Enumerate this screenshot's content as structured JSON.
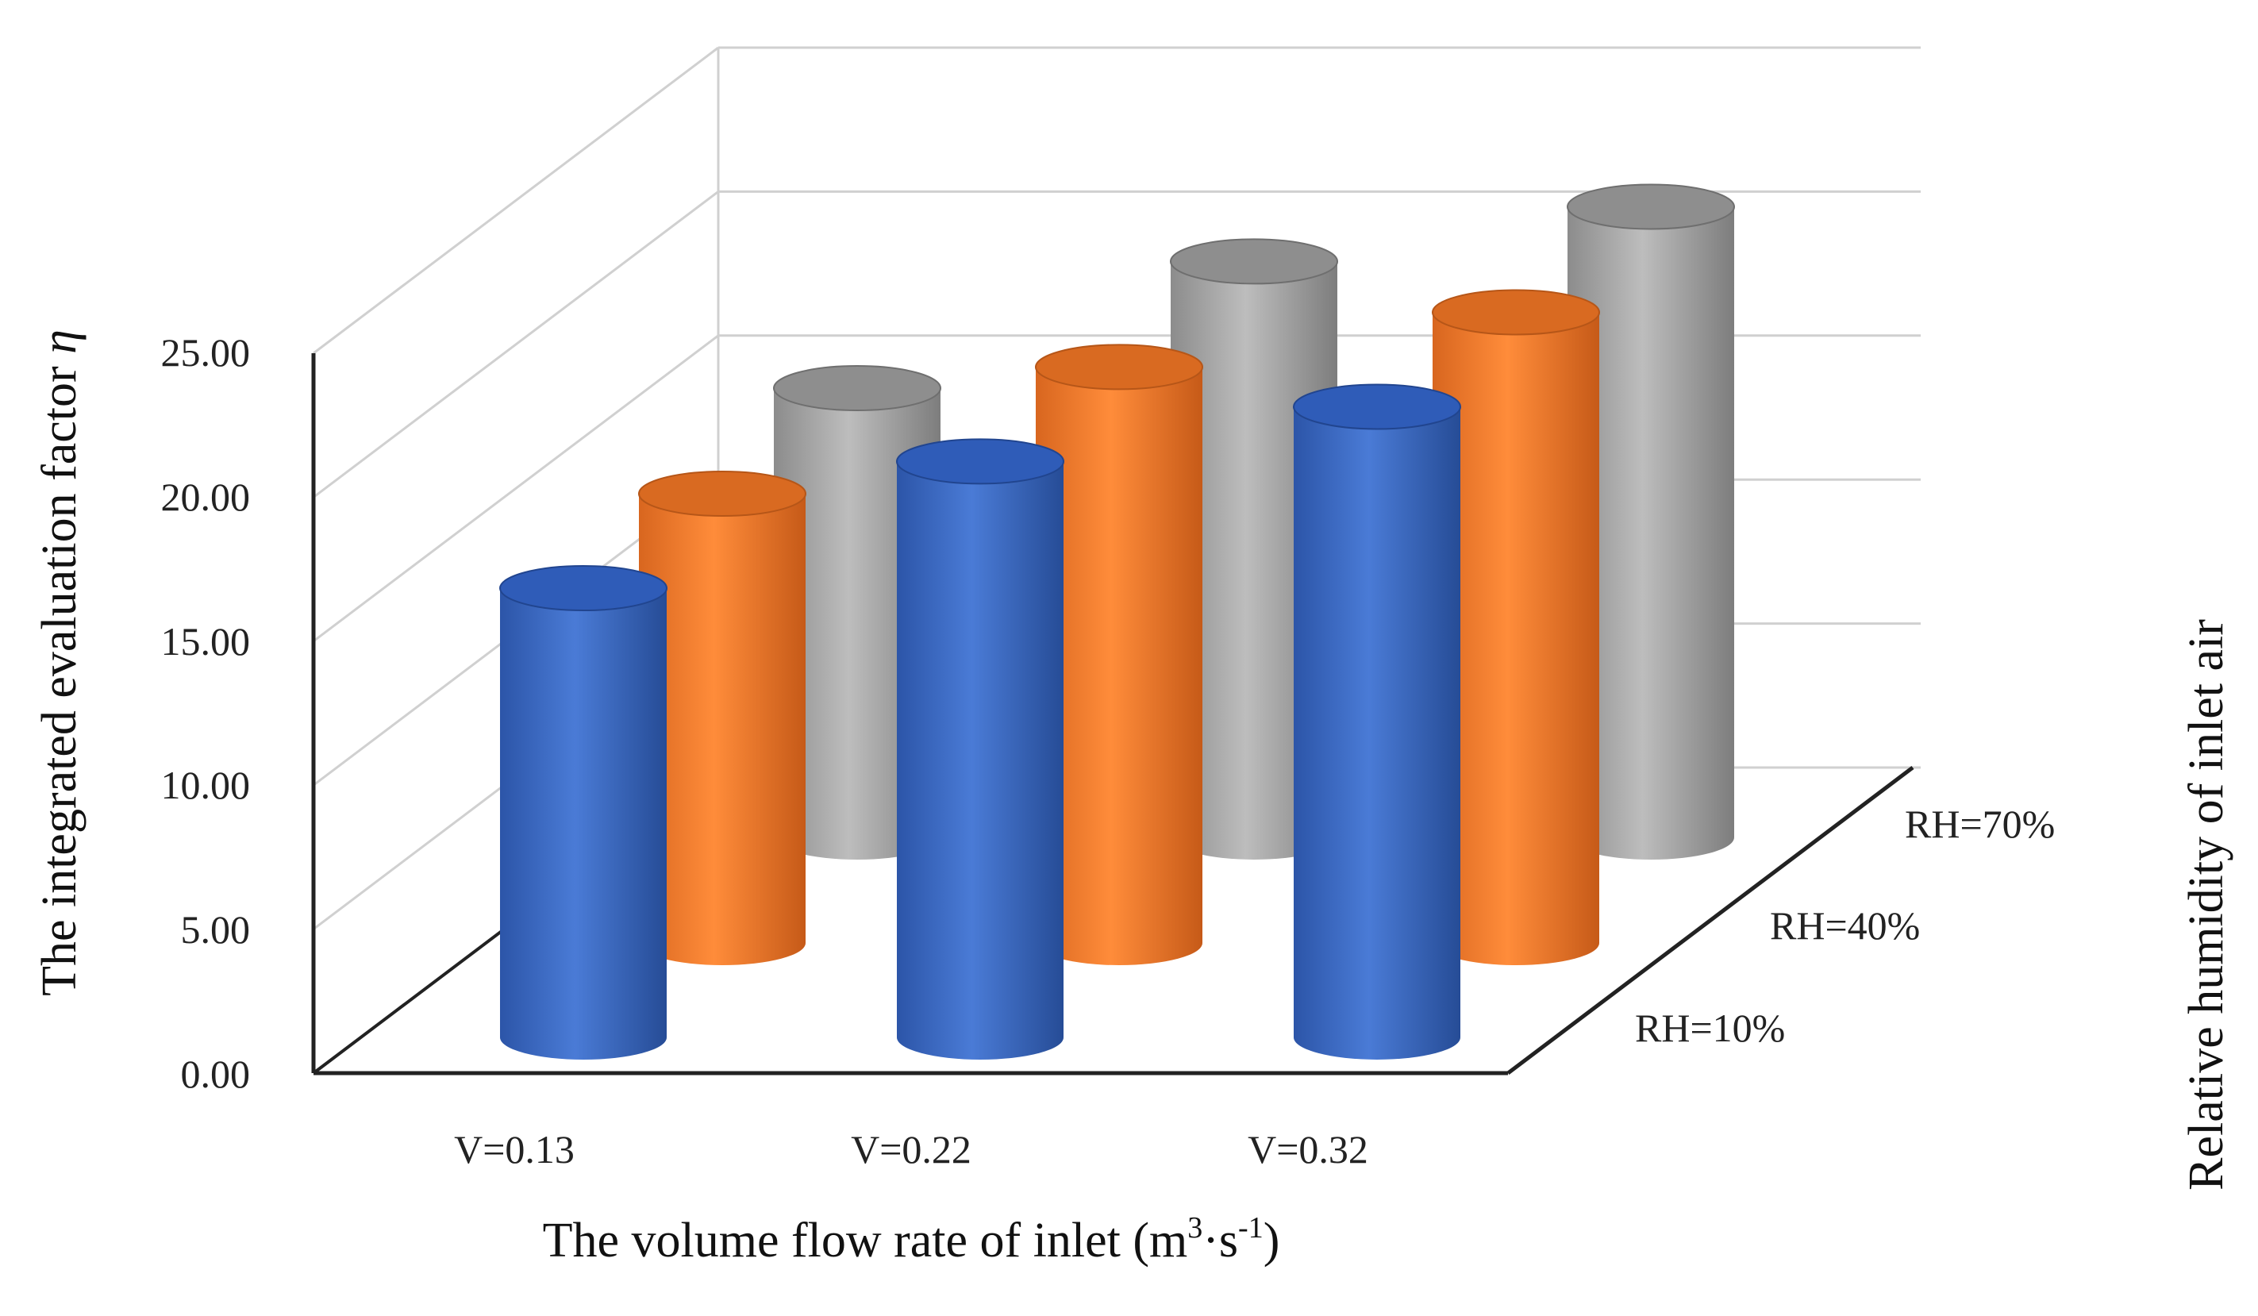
{
  "chart_data": {
    "type": "bar",
    "style": "3d-cylinder",
    "categories": [
      "V=0.13",
      "V=0.22",
      "V=0.32"
    ],
    "series": [
      {
        "name": "RH=10%",
        "values": [
          15.6,
          20.0,
          21.9
        ],
        "color": "#4472c4"
      },
      {
        "name": "RH=40%",
        "values": [
          15.6,
          20.0,
          21.9
        ],
        "color": "#ed7d31"
      },
      {
        "name": "RH=70%",
        "values": [
          15.6,
          20.0,
          21.9
        ],
        "color": "#a5a5a5"
      }
    ],
    "ylim": [
      0,
      25
    ],
    "yticks": [
      "0.00",
      "5.00",
      "10.00",
      "15.00",
      "20.00",
      "25.00"
    ],
    "ylabel_main": "The integrated evaluation factor ",
    "ylabel_symbol": "η",
    "xlabel_main": "The volume flow rate of inlet (m",
    "xlabel_sup1": "3",
    "xlabel_mid": "·s",
    "xlabel_sup2": "-1",
    "xlabel_end": ")",
    "zlabel": "Relative humidity of inlet air",
    "grid": true,
    "legend": "none"
  }
}
